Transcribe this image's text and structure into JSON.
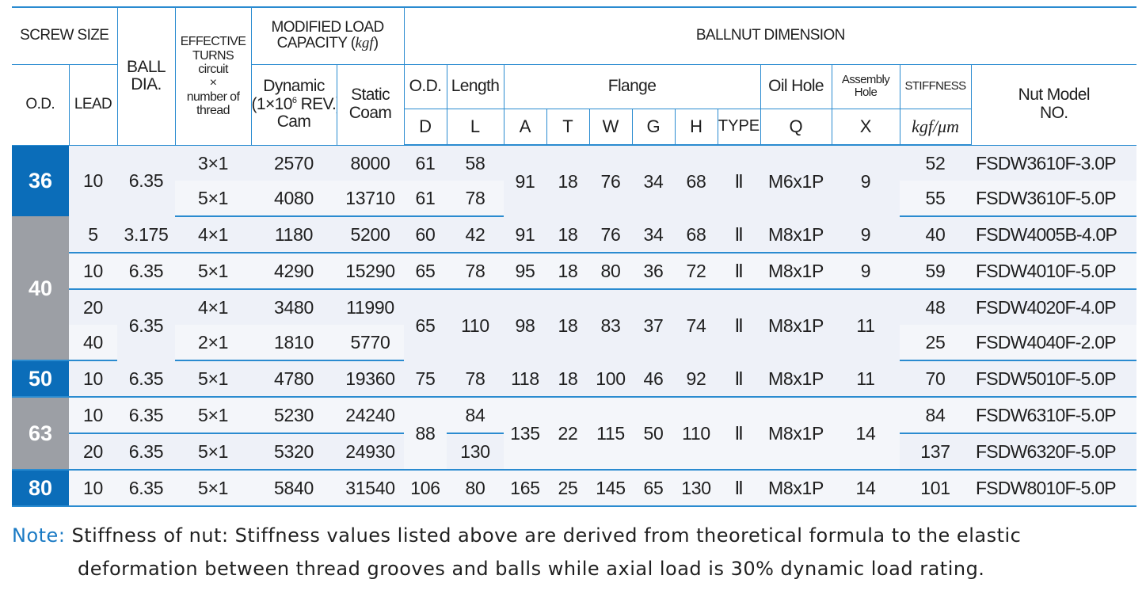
{
  "header": {
    "screw_size": "SCREW SIZE",
    "od": "O.D.",
    "lead": "LEAD",
    "ball_dia": [
      "BALL",
      "DIA."
    ],
    "eff_turns": [
      "EFFECTIVE",
      "TURNS",
      "circuit",
      "×",
      "number of",
      "thread"
    ],
    "modified_load": "MODIFIED LOAD",
    "capacity": "CAPACITY (",
    "kgf": "kgf",
    "capacity_close": ")",
    "dynamic": "Dynamic",
    "dynamic_rev_a": "(1×10",
    "dynamic_rev_exp": "6",
    "dynamic_rev_b": " REV.)",
    "cam": "Cam",
    "static": "Static",
    "coam": "Coam",
    "ballnut_dimension": "BALLNUT DIMENSION",
    "nut_od": "O.D.",
    "length": "Length",
    "flange": "Flange",
    "oil_hole": "Oil Hole",
    "assembly": "Assembly",
    "hole": "Hole",
    "stiffness": "STIFFNESS",
    "nut_model": "Nut Model",
    "no": "NO.",
    "d": "D",
    "l": "L",
    "a": "A",
    "t": "T",
    "w": "W",
    "g": "G",
    "h": "H",
    "type": "TYPE",
    "q": "Q",
    "x": "X",
    "stiff_unit": "kgf/μm"
  },
  "rows": [
    {
      "od": "36",
      "lead": "10",
      "ball": "6.35",
      "turns": "3×1",
      "dyn": "2570",
      "stat": "8000",
      "d": "61",
      "l": "58",
      "a": "91",
      "t": "18",
      "w": "76",
      "g": "34",
      "h": "68",
      "type": "Ⅱ",
      "q": "M6x1P",
      "x": "9",
      "stiff": "52",
      "model": "FSDW3610F-3.0P"
    },
    {
      "turns": "5×1",
      "dyn": "4080",
      "stat": "13710",
      "d": "61",
      "l": "78",
      "stiff": "55",
      "model": "FSDW3610F-5.0P"
    },
    {
      "od": "40",
      "lead": "5",
      "ball": "3.175",
      "turns": "4×1",
      "dyn": "1180",
      "stat": "5200",
      "d": "60",
      "l": "42",
      "a": "91",
      "t": "18",
      "w": "76",
      "g": "34",
      "h": "68",
      "type": "Ⅱ",
      "q": "M8x1P",
      "x": "9",
      "stiff": "40",
      "model": "FSDW4005B-4.0P"
    },
    {
      "lead": "10",
      "ball": "6.35",
      "turns": "5×1",
      "dyn": "4290",
      "stat": "15290",
      "d": "65",
      "l": "78",
      "a": "95",
      "t": "18",
      "w": "80",
      "g": "36",
      "h": "72",
      "type": "Ⅱ",
      "q": "M8x1P",
      "x": "9",
      "stiff": "59",
      "model": "FSDW4010F-5.0P"
    },
    {
      "lead": "20",
      "ball": "6.35",
      "turns": "4×1",
      "dyn": "3480",
      "stat": "11990",
      "d": "65",
      "l": "110",
      "a": "98",
      "t": "18",
      "w": "83",
      "g": "37",
      "h": "74",
      "type": "Ⅱ",
      "q": "M8x1P",
      "x": "11",
      "stiff": "48",
      "model": "FSDW4020F-4.0P"
    },
    {
      "lead": "40",
      "turns": "2×1",
      "dyn": "1810",
      "stat": "5770",
      "stiff": "25",
      "model": "FSDW4040F-2.0P"
    },
    {
      "od": "50",
      "lead": "10",
      "ball": "6.35",
      "turns": "5×1",
      "dyn": "4780",
      "stat": "19360",
      "d": "75",
      "l": "78",
      "a": "118",
      "t": "18",
      "w": "100",
      "g": "46",
      "h": "92",
      "type": "Ⅱ",
      "q": "M8x1P",
      "x": "11",
      "stiff": "70",
      "model": "FSDW5010F-5.0P"
    },
    {
      "od": "63",
      "lead": "10",
      "ball": "6.35",
      "turns": "5×1",
      "dyn": "5230",
      "stat": "24240",
      "d": "88",
      "l": "84",
      "a": "135",
      "t": "22",
      "w": "115",
      "g": "50",
      "h": "110",
      "type": "Ⅱ",
      "q": "M8x1P",
      "x": "14",
      "stiff": "84",
      "model": "FSDW6310F-5.0P"
    },
    {
      "lead": "20",
      "ball": "6.35",
      "turns": "5×1",
      "dyn": "5320",
      "stat": "24930",
      "l": "130",
      "stiff": "137",
      "model": "FSDW6320F-5.0P"
    },
    {
      "od": "80",
      "lead": "10",
      "ball": "6.35",
      "turns": "5×1",
      "dyn": "5840",
      "stat": "31540",
      "d": "106",
      "l": "80",
      "a": "165",
      "t": "25",
      "w": "145",
      "g": "65",
      "h": "130",
      "type": "Ⅱ",
      "q": "M8x1P",
      "x": "14",
      "stiff": "101",
      "model": "FSDW8010F-5.0P"
    }
  ],
  "note": {
    "label": "Note:",
    "line1": " Stiffness of nut: Stiffness values listed above are derived from theoretical formula to the elastic",
    "line2": "deformation between thread grooves and balls while axial load is 30% dynamic load rating."
  },
  "colors": {
    "accent_blue": "#0b6db9",
    "accent_gray": "#9c9fa5",
    "rule_blue": "#2a8bd0",
    "note_blue": "#1a7ac4"
  }
}
